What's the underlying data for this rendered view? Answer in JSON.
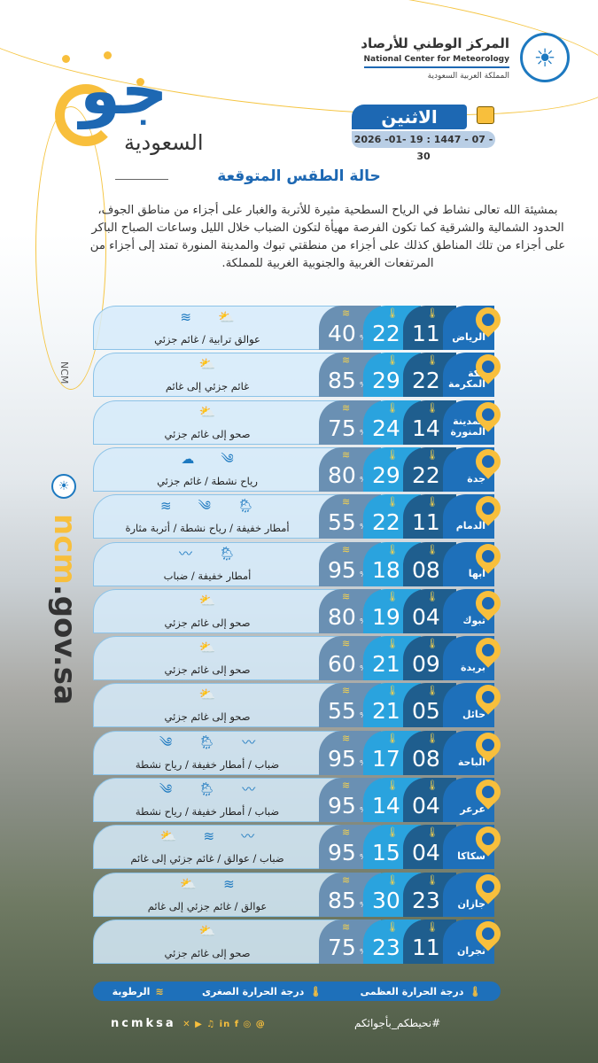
{
  "header": {
    "brand_logo": "جو",
    "brand_subtitle": "السعودية",
    "org_name_ar": "المركز الوطني للأرصاد",
    "org_name_en": "National Center for Meteorology",
    "org_country_ar": "المملكة العربية السعودية",
    "day": "الاثنين",
    "date": "2026 -01- 19 : 1447 - 07 - 30"
  },
  "title": "حالة الطقس المتوقعة",
  "description": "بمشيئة الله تعالى نشاط في الرياح السطحية مثيرة للأتربة والغبار على أجزاء من مناطق الجوف، الحدود الشمالية والشرقية كما تكون الفرصة مهيأة لتكون الضباب خلال الليل وساعات الصباح الباكر على أجزاء من تلك المناطق كذلك على أجزاء من منطقتي تبوك والمدينة المنورة تمتد إلى أجزاء من المرتفعات الغربية والجنوبية الغربية للمملكة.",
  "side": {
    "label": "NCM",
    "url_prefix": "ncm",
    "url_rest": ".gov.sa"
  },
  "colors": {
    "brand_blue": "#1d68b3",
    "accent_yellow": "#f8bf3c",
    "max_temp": "#2aa3de",
    "min_temp": "#1f5e8e",
    "humidity": "#6a90b3"
  },
  "percent_symbol": "%",
  "cities": [
    {
      "name": "الرياض",
      "min": "11",
      "max": "22",
      "humidity": "40",
      "condition": "عوالق ترابية / غائم جزئي",
      "icons": [
        "partly-cloudy",
        "dust"
      ]
    },
    {
      "name": "مكة المكرمة",
      "min": "22",
      "max": "29",
      "humidity": "85",
      "condition": "غائم جزئي إلى غائم",
      "icons": [
        "partly-cloudy"
      ]
    },
    {
      "name": "المدينة المنورة",
      "min": "14",
      "max": "24",
      "humidity": "75",
      "condition": "صحو إلى غائم جزئي",
      "icons": [
        "partly-cloudy"
      ]
    },
    {
      "name": "جدة",
      "min": "22",
      "max": "29",
      "humidity": "80",
      "condition": "رياح نشطة / غائم جزئي",
      "icons": [
        "wind",
        "cloud"
      ]
    },
    {
      "name": "الدمام",
      "min": "11",
      "max": "22",
      "humidity": "55",
      "condition": "أمطار خفيفة / رياح نشطة / أتربة مثارة",
      "icons": [
        "light-rain",
        "wind",
        "dust"
      ]
    },
    {
      "name": "أبها",
      "min": "08",
      "max": "18",
      "humidity": "95",
      "condition": "أمطار خفيفة / ضباب",
      "icons": [
        "light-rain",
        "fog"
      ]
    },
    {
      "name": "تبوك",
      "min": "04",
      "max": "19",
      "humidity": "80",
      "condition": "صحو إلى غائم جزئي",
      "icons": [
        "partly-cloudy"
      ]
    },
    {
      "name": "بريدة",
      "min": "09",
      "max": "21",
      "humidity": "60",
      "condition": "صحو إلى غائم جزئي",
      "icons": [
        "partly-cloudy"
      ]
    },
    {
      "name": "حائل",
      "min": "05",
      "max": "21",
      "humidity": "55",
      "condition": "صحو إلى غائم جزئي",
      "icons": [
        "partly-cloudy"
      ]
    },
    {
      "name": "الباحة",
      "min": "08",
      "max": "17",
      "humidity": "95",
      "condition": "ضباب / أمطار خفيفة / رياح نشطة",
      "icons": [
        "fog",
        "light-rain",
        "wind"
      ]
    },
    {
      "name": "عرعر",
      "min": "04",
      "max": "14",
      "humidity": "95",
      "condition": "ضباب / أمطار خفيفة / رياح نشطة",
      "icons": [
        "fog",
        "light-rain",
        "wind"
      ]
    },
    {
      "name": "سكاكا",
      "min": "04",
      "max": "15",
      "humidity": "95",
      "condition": "ضباب / عوالق / غائم جزئي إلى غائم",
      "icons": [
        "fog",
        "dust",
        "partly-cloudy"
      ]
    },
    {
      "name": "جازان",
      "min": "23",
      "max": "30",
      "humidity": "85",
      "condition": "عوالق / غائم جزئي إلى غائم",
      "icons": [
        "dust",
        "partly-cloudy"
      ]
    },
    {
      "name": "نجران",
      "min": "11",
      "max": "23",
      "humidity": "75",
      "condition": "صحو إلى غائم جزئي",
      "icons": [
        "partly-cloudy"
      ]
    }
  ],
  "legend": {
    "max": "درجة الحرارة العظمى",
    "min": "درجة الحرارة الصغرى",
    "humidity": "الرطوبة"
  },
  "footer": {
    "handle": "ncmksa",
    "hashtag": "#نحيطكم_بأجوائكم"
  }
}
